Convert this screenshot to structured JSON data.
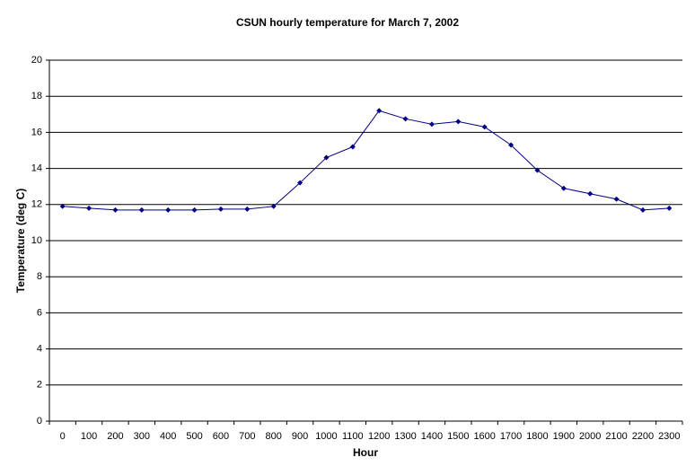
{
  "chart_data": {
    "type": "line",
    "title": "CSUN hourly temperature for March 7, 2002",
    "x_label": "Hour",
    "y_label": "Temperature (deg C)",
    "categories": [
      "0",
      "100",
      "200",
      "300",
      "400",
      "500",
      "600",
      "700",
      "800",
      "900",
      "1000",
      "1100",
      "1200",
      "1300",
      "1400",
      "1500",
      "1600",
      "1700",
      "1800",
      "1900",
      "2000",
      "2100",
      "2200",
      "2300"
    ],
    "series": [
      {
        "name": "Temperature",
        "color": "#000080",
        "values": [
          11.9,
          11.8,
          11.7,
          11.7,
          11.7,
          11.7,
          11.75,
          11.75,
          11.9,
          13.2,
          14.6,
          15.2,
          17.2,
          16.75,
          16.45,
          16.6,
          16.3,
          15.3,
          13.9,
          12.9,
          12.6,
          12.3,
          11.7,
          11.8
        ]
      }
    ],
    "ylim": [
      0,
      20
    ],
    "yticks": [
      0,
      2,
      4,
      6,
      8,
      10,
      12,
      14,
      16,
      18,
      20
    ],
    "grid": true
  }
}
